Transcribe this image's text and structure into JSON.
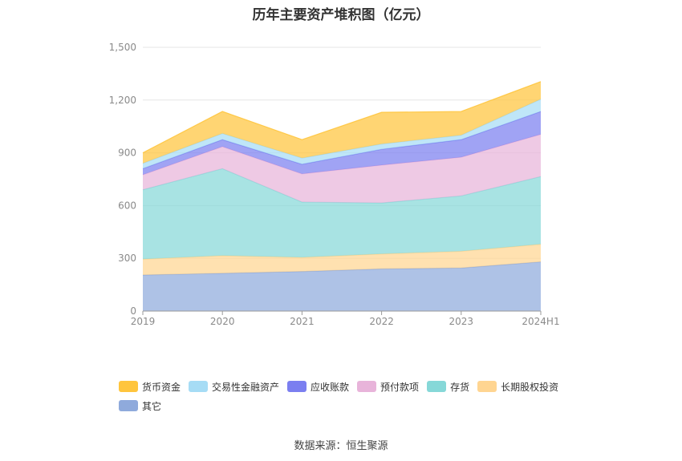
{
  "chart_data": {
    "type": "area",
    "stacked": true,
    "title": "历年主要资产堆积图（亿元）",
    "x": [
      "2019",
      "2020",
      "2021",
      "2022",
      "2023",
      "2024H1"
    ],
    "ylim": [
      0,
      1500
    ],
    "yticks": [
      "0",
      "300",
      "600",
      "900",
      "1,200",
      "1,500"
    ],
    "grid": true,
    "legend_position": "bottom",
    "series": [
      {
        "name": "其它",
        "color": "#8faadc",
        "values": [
          205,
          215,
          225,
          240,
          245,
          280
        ]
      },
      {
        "name": "长期股权投资",
        "color": "#ffd591",
        "values": [
          90,
          100,
          80,
          85,
          95,
          100
        ]
      },
      {
        "name": "存货",
        "color": "#86d8d8",
        "values": [
          395,
          495,
          315,
          290,
          315,
          385
        ]
      },
      {
        "name": "预付款项",
        "color": "#e8b4da",
        "values": [
          85,
          125,
          160,
          215,
          220,
          240
        ]
      },
      {
        "name": "应收账款",
        "color": "#7b7ff0",
        "values": [
          35,
          40,
          55,
          90,
          100,
          130
        ]
      },
      {
        "name": "交易性金融资产",
        "color": "#a6dcf5",
        "values": [
          30,
          35,
          35,
          30,
          25,
          70
        ]
      },
      {
        "name": "货币资金",
        "color": "#ffc53d",
        "values": [
          60,
          125,
          105,
          180,
          135,
          100
        ]
      }
    ],
    "legend_order": [
      "货币资金",
      "交易性金融资产",
      "应收账款",
      "预付款项",
      "存货",
      "长期股权投资",
      "其它"
    ]
  },
  "source_note": "数据来源：恒生聚源"
}
